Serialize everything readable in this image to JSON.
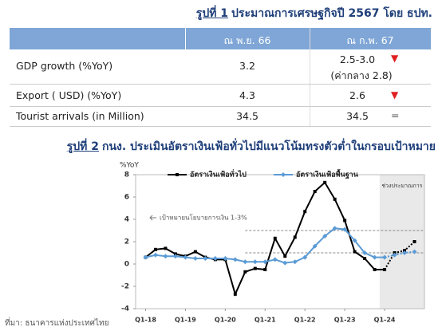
{
  "figure1": {
    "label": "รูปที่ 1",
    "title": "ประมาณการเศรษฐกิจปี 2567 โดย ธปท."
  },
  "table": {
    "header": [
      "ณ พ.ย. 66",
      "ณ ก.พ. 67"
    ],
    "rows": [
      {
        "label": "GDP growth (%YoY)",
        "nov66": "3.2",
        "feb67": "2.5-3.0",
        "note": "(ค่ากลาง 2.8)",
        "change": "▼"
      },
      {
        "label": "Export ( USD) (%YoY)",
        "nov66": "4.3",
        "feb67": "2.6",
        "change": "▼"
      },
      {
        "label": "Tourist arrivals (in Million)",
        "nov66": "34.5",
        "feb67": "34.5",
        "change": "="
      }
    ]
  },
  "figure2": {
    "label": "รูปที่ 2",
    "title": "กนง. ประเมินอัตราเงินเฟ้อทั่วไปมีแนวโน้มทรงตัวต่ำในกรอบเป้าหมาย"
  },
  "chart_data": {
    "type": "line",
    "y_label": "%YoY",
    "x": [
      2018,
      2018.25,
      2018.5,
      2018.75,
      2019,
      2019.25,
      2019.5,
      2019.75,
      2020,
      2020.25,
      2020.5,
      2020.75,
      2021,
      2021.25,
      2021.5,
      2021.75,
      2022,
      2022.25,
      2022.5,
      2022.75,
      2023,
      2023.25,
      2023.5,
      2023.75,
      2024,
      2024.25,
      2024.5,
      2024.75
    ],
    "xlim": [
      2017.75,
      2025
    ],
    "xticks": [
      {
        "value": 2018,
        "label": "Q1-18"
      },
      {
        "value": 2019,
        "label": "Q1-19"
      },
      {
        "value": 2020,
        "label": "Q1-20"
      },
      {
        "value": 2021,
        "label": "Q1-21"
      },
      {
        "value": 2022,
        "label": "Q1-22"
      },
      {
        "value": 2023,
        "label": "Q1-23"
      },
      {
        "value": 2024,
        "label": "Q1-24"
      }
    ],
    "ylim": [
      -4,
      8
    ],
    "yticks": [
      -4,
      -2,
      0,
      2,
      4,
      6,
      8
    ],
    "series": [
      {
        "name": "อัตราเงินเฟ้อทั่วไป",
        "color": "#000000",
        "marker": "square",
        "values": [
          0.6,
          1.3,
          1.4,
          0.9,
          0.7,
          1.1,
          0.6,
          0.4,
          0.4,
          -2.7,
          -0.7,
          -0.4,
          -0.5,
          2.3,
          0.7,
          2.4,
          4.7,
          6.5,
          7.3,
          5.8,
          3.9,
          1.1,
          0.5,
          -0.5,
          -0.5,
          1.0,
          1.2,
          2.0
        ]
      },
      {
        "name": "อัตราเงินเฟ้อพื้นฐาน",
        "color": "#5b9bd5",
        "marker": "diamond",
        "values": [
          0.6,
          0.8,
          0.7,
          0.7,
          0.6,
          0.5,
          0.5,
          0.5,
          0.5,
          0.4,
          0.2,
          0.2,
          0.2,
          0.4,
          0.1,
          0.2,
          0.6,
          1.6,
          2.5,
          3.2,
          3.1,
          2.1,
          1.0,
          0.6,
          0.6,
          0.8,
          1.0,
          1.1
        ]
      }
    ],
    "target_band": {
      "label": "เป้าหมายนโยบายการเงิน 1-3%",
      "ylim": [
        1,
        3
      ],
      "xlim": [
        2020.5,
        2025
      ]
    },
    "forecast": {
      "label": "ช่วงประมาณการ",
      "xlim": [
        2023.875,
        2025
      ]
    },
    "legend": "top",
    "source": "ที่มา: ธนาคารแห่งประเทศไทย"
  }
}
